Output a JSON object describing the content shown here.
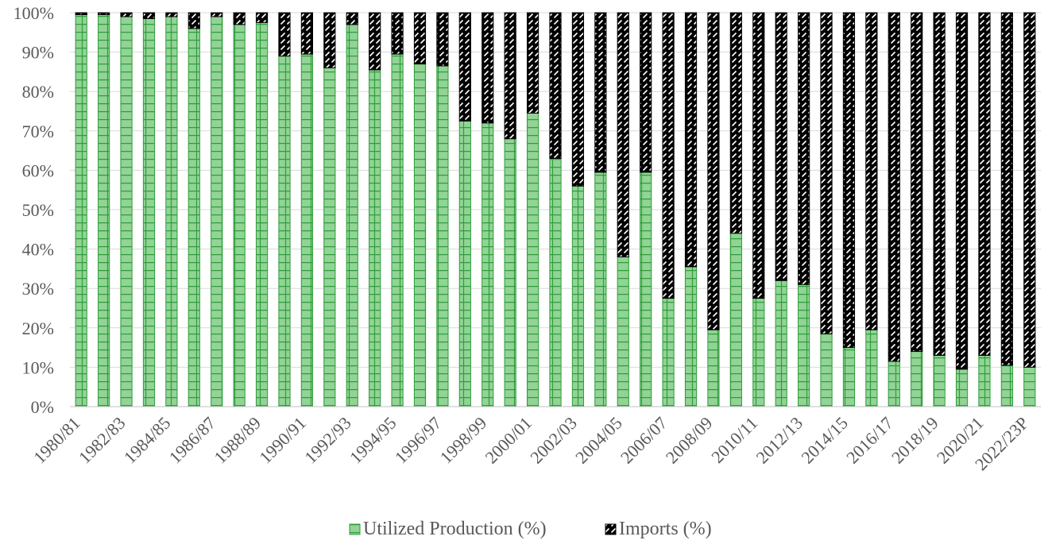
{
  "chart_data": {
    "type": "bar",
    "stacked": true,
    "percent_stacked": true,
    "categories": [
      "1980/81",
      "1981/82",
      "1982/83",
      "1983/84",
      "1984/85",
      "1985/86",
      "1986/87",
      "1987/88",
      "1988/89",
      "1989/90",
      "1990/91",
      "1991/92",
      "1992/93",
      "1993/94",
      "1994/95",
      "1995/96",
      "1996/97",
      "1997/98",
      "1998/99",
      "1999/00",
      "2000/01",
      "2001/02",
      "2002/03",
      "2003/04",
      "2004/05",
      "2005/06",
      "2006/07",
      "2007/08",
      "2008/09",
      "2009/10",
      "2010/11",
      "2011/12",
      "2012/13",
      "2013/14",
      "2014/15",
      "2015/16",
      "2016/17",
      "2017/18",
      "2018/19",
      "2019/20",
      "2020/21",
      "2021/22",
      "2022/23P"
    ],
    "x_tick_labels_shown": [
      "1980/81",
      "1982/83",
      "1984/85",
      "1986/87",
      "1988/89",
      "1990/91",
      "1992/93",
      "1994/95",
      "1996/97",
      "1998/99",
      "2000/01",
      "2002/03",
      "2004/05",
      "2006/07",
      "2008/09",
      "2010/11",
      "2012/13",
      "2014/15",
      "2016/17",
      "2018/19",
      "2020/21",
      "2022/23P"
    ],
    "series": [
      {
        "name": "Utilized Production (%)",
        "color": "#92d396",
        "pattern": "green-grid",
        "values": [
          99.5,
          99.5,
          99,
          98.5,
          99,
          96,
          99,
          97,
          97.5,
          89,
          89.5,
          86,
          97,
          85.5,
          89.5,
          87,
          86.5,
          72.5,
          72,
          68,
          74.5,
          63,
          56,
          59.5,
          38,
          59.5,
          27.5,
          35.5,
          19.5,
          44,
          27.5,
          32,
          31,
          18.5,
          15,
          19.5,
          11.5,
          14,
          13,
          9.5,
          13,
          10.5,
          10
        ]
      },
      {
        "name": "Imports (%)",
        "color": "#000000",
        "pattern": "black-diagonal-dash",
        "values": [
          0.5,
          0.5,
          1,
          1.5,
          1,
          4,
          1,
          3,
          2.5,
          11,
          10.5,
          14,
          3,
          14.5,
          10.5,
          13,
          13.5,
          27.5,
          28,
          32,
          25.5,
          37,
          44,
          40.5,
          62,
          40.5,
          72.5,
          64.5,
          80.5,
          56,
          72.5,
          68,
          69,
          81.5,
          85,
          80.5,
          88.5,
          86,
          87,
          90.5,
          87,
          89.5,
          90
        ]
      }
    ],
    "y_tick_labels": [
      "0%",
      "10%",
      "20%",
      "30%",
      "40%",
      "50%",
      "60%",
      "70%",
      "80%",
      "90%",
      "100%"
    ],
    "ylim": [
      0,
      100
    ],
    "grid": "horizontal",
    "legend_position": "bottom",
    "title": "",
    "xlabel": "",
    "ylabel": ""
  }
}
